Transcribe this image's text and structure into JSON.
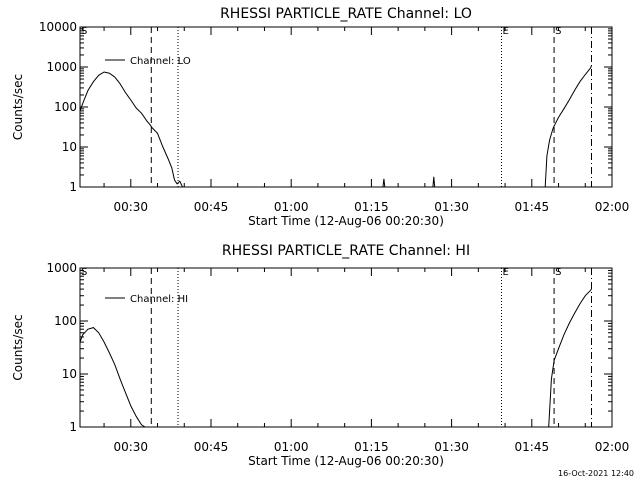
{
  "chart_data": [
    {
      "type": "line",
      "title": "RHESSI PARTICLE_RATE Channel: LO",
      "xlabel": "Start Time (12-Aug-06 00:20:30)",
      "ylabel": "Counts/sec",
      "yscale": "log",
      "xlim": [
        "00:20:30",
        "02:00:00"
      ],
      "ylim": [
        1,
        10000
      ],
      "x_ticks": [
        "00:30",
        "00:45",
        "01:00",
        "01:15",
        "01:30",
        "01:45",
        "02:00"
      ],
      "y_ticks": [
        "1",
        "10",
        "100",
        "1000",
        "10000"
      ],
      "legend": {
        "position": "top-left",
        "entries": [
          "Channel: LO"
        ]
      },
      "markers": [
        {
          "label": "E",
          "time": "01:39:20",
          "style": "dotted",
          "text_at": "top"
        },
        {
          "label": "S",
          "time": "01:49:10",
          "style": "dashed",
          "text_at": "top"
        },
        {
          "label": "",
          "time": "01:56:10",
          "style": "dashdot",
          "text_at": ""
        },
        {
          "label": "",
          "time": "00:33:50",
          "style": "dashed",
          "text_at": ""
        },
        {
          "label": "",
          "time": "00:38:50",
          "style": "dotted",
          "text_at": ""
        },
        {
          "label": "S",
          "time": "00:20:30",
          "style": "none",
          "text_at": "top"
        }
      ],
      "series": [
        {
          "name": "Channel: LO",
          "x": [
            "00:20:30",
            "00:21:10",
            "00:22:00",
            "00:23:00",
            "00:24:00",
            "00:25:00",
            "00:26:00",
            "00:27:00",
            "00:28:00",
            "00:29:00",
            "00:30:00",
            "00:31:00",
            "00:32:00",
            "00:33:00",
            "00:33:40",
            "00:34:00",
            "00:35:00",
            "00:36:00",
            "00:37:00",
            "00:37:40",
            "00:38:10",
            "00:38:40",
            "00:39:10",
            "00:39:40",
            "00:40:00"
          ],
          "y": [
            80,
            140,
            260,
            430,
            620,
            750,
            700,
            560,
            380,
            230,
            150,
            95,
            70,
            45,
            35,
            30,
            22,
            10,
            5,
            3,
            1.5,
            1.2,
            1.4,
            1,
            1
          ]
        },
        {
          "name": "",
          "x": [
            "01:17:10",
            "01:17:20",
            "01:17:30"
          ],
          "y": [
            1,
            1.6,
            1
          ]
        },
        {
          "name": "",
          "x": [
            "01:26:30",
            "01:26:40",
            "01:26:50"
          ],
          "y": [
            1,
            1.8,
            1
          ]
        },
        {
          "name": "",
          "x": [
            "01:47:30",
            "01:47:50",
            "01:48:20",
            "01:49:00",
            "01:50:00",
            "01:51:00",
            "01:52:00",
            "01:53:00",
            "01:54:00",
            "01:55:00",
            "01:56:00",
            "01:56:10"
          ],
          "y": [
            1,
            6,
            15,
            30,
            55,
            90,
            150,
            260,
            430,
            650,
            950,
            1100
          ]
        }
      ]
    },
    {
      "type": "line",
      "title": "RHESSI PARTICLE_RATE Channel: HI",
      "xlabel": "Start Time (12-Aug-06 00:20:30)",
      "ylabel": "Counts/sec",
      "yscale": "log",
      "xlim": [
        "00:20:30",
        "02:00:00"
      ],
      "ylim": [
        1,
        1000
      ],
      "x_ticks": [
        "00:30",
        "00:45",
        "01:00",
        "01:15",
        "01:30",
        "01:45",
        "02:00"
      ],
      "y_ticks": [
        "1",
        "10",
        "100",
        "1000"
      ],
      "legend": {
        "position": "top-left",
        "entries": [
          "Channel: HI"
        ]
      },
      "markers": [
        {
          "label": "E",
          "time": "01:39:20",
          "style": "dotted",
          "text_at": "top"
        },
        {
          "label": "S",
          "time": "01:49:10",
          "style": "dashed",
          "text_at": "top"
        },
        {
          "label": "",
          "time": "01:56:10",
          "style": "dashdot",
          "text_at": ""
        },
        {
          "label": "",
          "time": "00:33:50",
          "style": "dashed",
          "text_at": ""
        },
        {
          "label": "",
          "time": "00:38:50",
          "style": "dotted",
          "text_at": ""
        },
        {
          "label": "S",
          "time": "00:20:30",
          "style": "none",
          "text_at": "top"
        }
      ],
      "series": [
        {
          "name": "Channel: HI",
          "x": [
            "00:20:30",
            "00:21:00",
            "00:22:00",
            "00:23:00",
            "00:24:00",
            "00:25:00",
            "00:26:00",
            "00:27:00",
            "00:28:00",
            "00:29:00",
            "00:30:00",
            "00:31:00",
            "00:32:00",
            "00:32:40"
          ],
          "y": [
            40,
            55,
            70,
            75,
            60,
            40,
            25,
            15,
            8,
            4.5,
            2.5,
            1.6,
            1.1,
            1
          ]
        },
        {
          "name": "",
          "x": [
            "01:48:10",
            "01:48:40",
            "01:49:10",
            "01:50:00",
            "01:51:00",
            "01:52:00",
            "01:53:00",
            "01:54:00",
            "01:55:00",
            "01:56:00",
            "01:56:10"
          ],
          "y": [
            1,
            8,
            18,
            30,
            55,
            90,
            140,
            210,
            300,
            380,
            400
          ]
        }
      ]
    }
  ],
  "timestamp": "16-Oct-2021 12:40"
}
